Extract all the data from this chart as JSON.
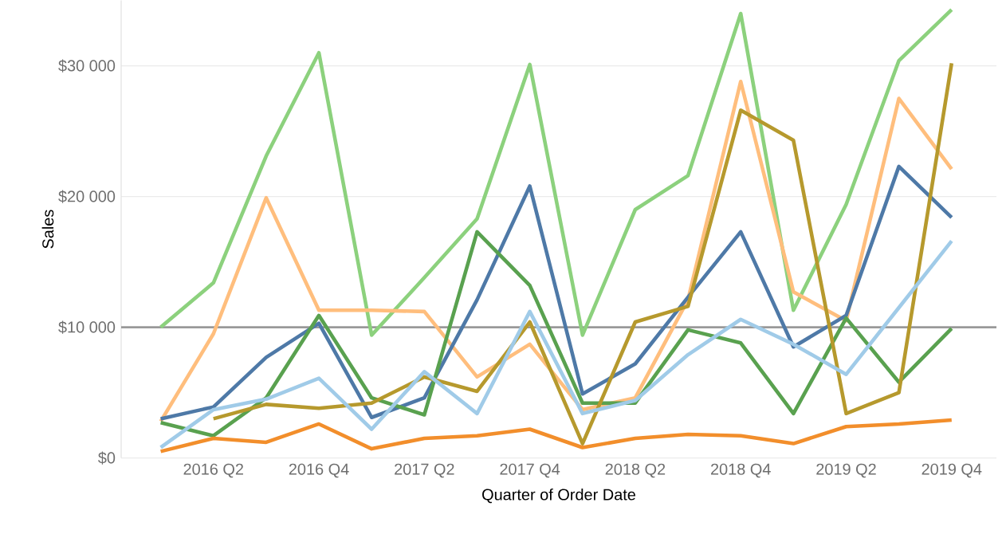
{
  "chart_data": {
    "type": "line",
    "xlabel": "Quarter of Order Date",
    "ylabel": "Sales",
    "categories": [
      null,
      "2016 Q2",
      null,
      "2016 Q4",
      null,
      "2017 Q2",
      null,
      "2017 Q4",
      null,
      "2018 Q2",
      null,
      "2018 Q4",
      null,
      "2019 Q2",
      null,
      "2019 Q4"
    ],
    "ylim": [
      0,
      35000
    ],
    "yticks": [
      {
        "value": 0,
        "label": "$0"
      },
      {
        "value": 10000,
        "label": "$10 000"
      },
      {
        "value": 20000,
        "label": "$20 000"
      },
      {
        "value": 30000,
        "label": "$30 000"
      }
    ],
    "grid": "y",
    "ref_lines": [
      {
        "axis": "y",
        "value": 10000,
        "color": "#999999"
      }
    ],
    "series": [
      {
        "color": "#8cd17d",
        "values": [
          10000,
          13400,
          23100,
          31000,
          9400,
          13800,
          18300,
          30100,
          9400,
          19000,
          21600,
          34000,
          11300,
          19400,
          30400,
          34300
        ]
      },
      {
        "color": "#ffbe7d",
        "values": [
          2800,
          9500,
          19900,
          11300,
          11300,
          11200,
          6200,
          8700,
          3700,
          4600,
          12100,
          28800,
          12700,
          10500,
          27500,
          22100
        ]
      },
      {
        "color": "#4e79a7",
        "values": [
          3000,
          3900,
          7700,
          10300,
          3100,
          4600,
          12100,
          20800,
          4900,
          7200,
          12300,
          17300,
          8500,
          10900,
          22300,
          18400
        ]
      },
      {
        "color": "#59a14f",
        "values": [
          2700,
          1700,
          4600,
          10900,
          4600,
          3300,
          17300,
          13200,
          4200,
          4200,
          9800,
          8800,
          3400,
          10700,
          5800,
          9900
        ]
      },
      {
        "color": "#b6992d",
        "values": [
          null,
          3000,
          4100,
          3800,
          4200,
          6200,
          5100,
          10400,
          1100,
          10400,
          11600,
          26600,
          24300,
          3400,
          5000,
          30200
        ]
      },
      {
        "color": "#a0cbe8",
        "values": [
          800,
          3700,
          4500,
          6100,
          2200,
          6600,
          3400,
          11200,
          3400,
          4400,
          7900,
          10600,
          8700,
          6400,
          11500,
          16600
        ]
      },
      {
        "color": "#f28e2b",
        "values": [
          500,
          1500,
          1200,
          2600,
          700,
          1500,
          1700,
          2200,
          800,
          1500,
          1800,
          1700,
          1100,
          2400,
          2600,
          2900
        ]
      }
    ]
  }
}
